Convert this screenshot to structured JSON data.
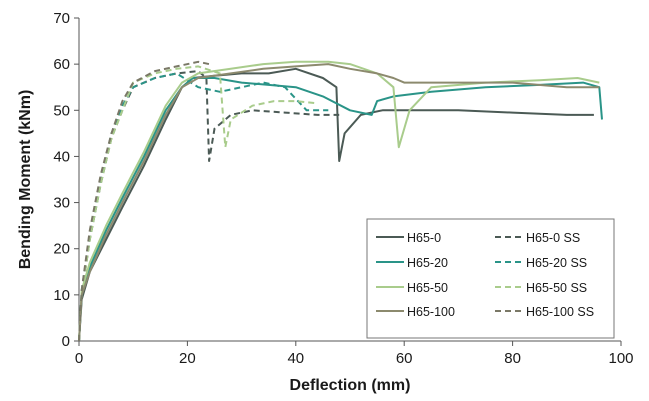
{
  "chart_data": {
    "type": "line",
    "title": "",
    "xlabel": "Deflection (mm)",
    "ylabel": "Bending  Moment  (kNm)",
    "xlim": [
      0,
      100
    ],
    "ylim": [
      0,
      70
    ],
    "xticks": [
      0,
      20,
      40,
      60,
      80,
      100
    ],
    "yticks": [
      0,
      10,
      20,
      30,
      40,
      50,
      60,
      70
    ],
    "grid": false,
    "legend_position": "bottom-right",
    "series": [
      {
        "name": "H65-0",
        "color": "#4b5a55",
        "dash": "solid",
        "x": [
          0,
          0.5,
          2,
          5,
          8,
          12,
          16,
          19,
          21,
          25,
          30,
          35,
          40,
          45,
          47.5,
          48,
          49,
          52,
          56,
          60,
          70,
          80,
          90,
          95
        ],
        "y": [
          0,
          9,
          15,
          22,
          29,
          38,
          48,
          55,
          57,
          57.5,
          58,
          58,
          59,
          57,
          55,
          39,
          45,
          49,
          50,
          50,
          50,
          49.5,
          49,
          49
        ]
      },
      {
        "name": "H65-0 SS",
        "color": "#4b5a55",
        "dash": "dashed",
        "x": [
          0,
          0.5,
          2,
          4,
          6,
          8,
          10,
          14,
          18,
          22,
          23.5,
          24,
          25,
          28,
          32,
          38,
          44,
          48
        ],
        "y": [
          0,
          10,
          22,
          34,
          44,
          50,
          55,
          57,
          58,
          58.5,
          57,
          39,
          46,
          49,
          50,
          49.5,
          49,
          49
        ]
      },
      {
        "name": "H65-20",
        "color": "#2a9488",
        "dash": "solid",
        "x": [
          0,
          0.5,
          2,
          5,
          8,
          12,
          16,
          19,
          21,
          25,
          30,
          35,
          40,
          45,
          50,
          54,
          55,
          58,
          65,
          75,
          85,
          93,
          96,
          96.5
        ],
        "y": [
          0,
          10,
          16,
          24,
          31,
          40,
          50,
          55,
          57,
          57,
          56,
          55.5,
          55,
          53,
          50,
          49,
          52,
          53,
          54,
          55,
          55.5,
          56,
          55,
          48
        ]
      },
      {
        "name": "H65-20 SS",
        "color": "#2a9488",
        "dash": "dashed",
        "x": [
          0,
          0.5,
          2,
          4,
          6,
          8,
          10,
          14,
          18,
          22,
          26,
          30,
          34,
          38,
          42,
          46
        ],
        "y": [
          0,
          11,
          23,
          35,
          45,
          51,
          55,
          57,
          58,
          55,
          54,
          55,
          56,
          55,
          50,
          50
        ]
      },
      {
        "name": "H65-50",
        "color": "#a9cc8c",
        "dash": "solid",
        "x": [
          0,
          0.5,
          2,
          5,
          8,
          12,
          16,
          19,
          22,
          28,
          34,
          40,
          46,
          50,
          55,
          58,
          59,
          61,
          65,
          75,
          85,
          92,
          96
        ],
        "y": [
          0,
          11,
          17,
          25,
          32,
          41,
          51,
          56,
          58,
          59,
          60,
          60.5,
          60.5,
          60,
          58,
          55,
          42,
          50,
          55,
          56,
          56.5,
          57,
          56
        ]
      },
      {
        "name": "H65-50 SS",
        "color": "#a9cc8c",
        "dash": "dashed",
        "x": [
          0,
          0.5,
          2,
          4,
          6,
          8,
          10,
          14,
          18,
          22,
          26,
          27,
          28,
          32,
          36,
          40,
          44
        ],
        "y": [
          0,
          10,
          22,
          34,
          44,
          50,
          56,
          58,
          59,
          59.5,
          58,
          42,
          48,
          51,
          52,
          52,
          51.5
        ]
      },
      {
        "name": "H65-100",
        "color": "#8c8a6e",
        "dash": "solid",
        "x": [
          0,
          0.5,
          2,
          5,
          8,
          12,
          16,
          19,
          22,
          28,
          34,
          40,
          46,
          50,
          55,
          58,
          60,
          70,
          80,
          90,
          96
        ],
        "y": [
          0,
          10,
          15,
          23,
          30,
          39,
          49,
          55,
          57,
          58,
          59,
          59.5,
          60,
          59,
          58,
          57,
          56,
          56,
          56,
          55,
          55
        ]
      },
      {
        "name": "H65-100 SS",
        "color": "#7a7866",
        "dash": "dashed",
        "x": [
          0,
          0.5,
          2,
          4,
          6,
          8,
          10,
          14,
          18,
          22,
          24
        ],
        "y": [
          0,
          11,
          24,
          36,
          45,
          52,
          56,
          58.5,
          59.5,
          60.5,
          60
        ]
      }
    ]
  }
}
